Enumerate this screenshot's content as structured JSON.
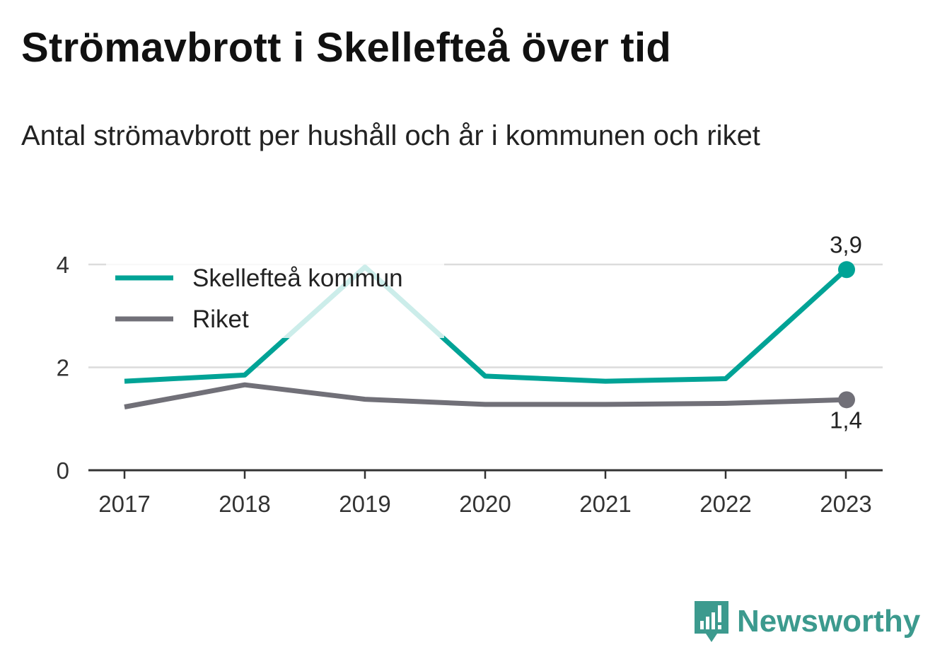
{
  "title": "Strömavbrott i Skellefteå över tid",
  "subtitle": "Antal strömavbrott per hushåll och år i kommunen och riket",
  "brand": {
    "name": "Newsworthy",
    "icon": "newsworthy-bar-chart-icon",
    "color": "#3c9a8e"
  },
  "chart_data": {
    "type": "line",
    "x": [
      "2017",
      "2018",
      "2019",
      "2020",
      "2021",
      "2022",
      "2023"
    ],
    "series": [
      {
        "name": "Skellefteå kommun",
        "color": "#00a396",
        "values": [
          1.73,
          1.85,
          3.95,
          1.83,
          1.73,
          1.78,
          3.9
        ],
        "end_label": "3,9"
      },
      {
        "name": "Riket",
        "color": "#717078",
        "values": [
          1.23,
          1.66,
          1.38,
          1.28,
          1.28,
          1.3,
          1.37
        ],
        "end_label": "1,4"
      }
    ],
    "ylim": [
      0,
      4
    ],
    "yticks": [
      {
        "value": 0,
        "label": "0"
      },
      {
        "value": 2,
        "label": "2"
      },
      {
        "value": 4,
        "label": "4"
      }
    ],
    "grid": true,
    "legend": "top-left",
    "xlabel": "",
    "ylabel": ""
  }
}
